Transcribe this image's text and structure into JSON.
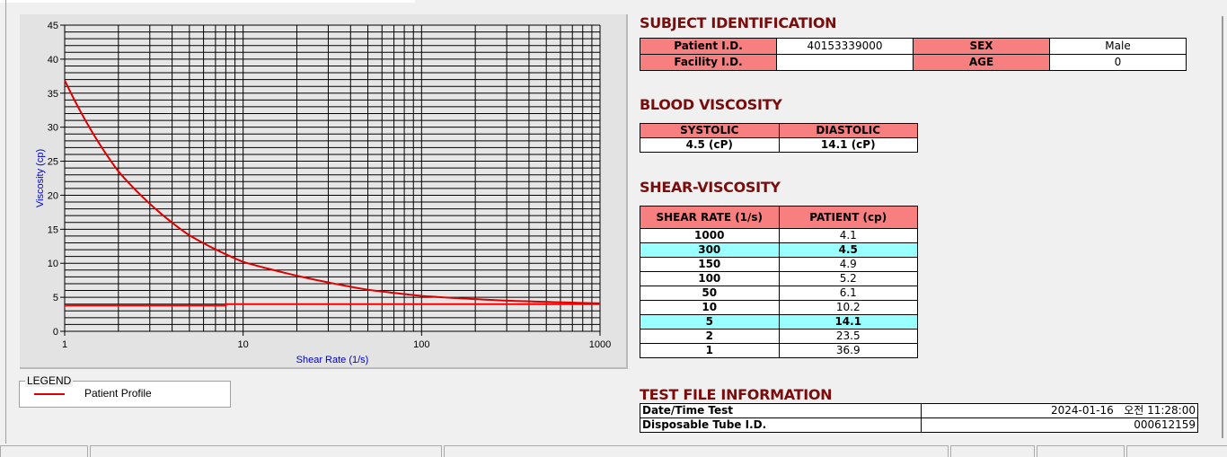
{
  "chart_data": {
    "type": "line",
    "xlabel": "Shear Rate (1/s)",
    "ylabel": "Viscosity (cp)",
    "xscale": "log",
    "xlim": [
      1,
      1000
    ],
    "ylim": [
      0,
      45
    ],
    "x_ticks": [
      "1",
      "10",
      "100",
      "1000"
    ],
    "y_ticks": [
      "0",
      "5",
      "10",
      "15",
      "20",
      "25",
      "30",
      "35",
      "40",
      "45"
    ],
    "grid": true,
    "series": [
      {
        "name": "Patient Profile",
        "color": "#dd0000",
        "x": [
          1,
          2,
          5,
          10,
          50,
          100,
          150,
          300,
          1000
        ],
        "y": [
          36.9,
          23.5,
          14.1,
          10.2,
          6.1,
          5.2,
          4.9,
          4.5,
          4.1
        ]
      },
      {
        "color": "#ff0000",
        "x": [
          1,
          8,
          8,
          1000
        ],
        "y": [
          3.8,
          3.8,
          4.0,
          4.0
        ]
      }
    ],
    "legend_title": "LEGEND",
    "legend_placement": "bottom-left"
  },
  "subject": {
    "title": "SUBJECT IDENTIFICATION",
    "patient_id_label": "Patient I.D.",
    "patient_id": "40153339000",
    "sex_label": "SEX",
    "sex": "Male",
    "facility_label": "Facility I.D.",
    "facility": "",
    "age_label": "AGE",
    "age": "0"
  },
  "blood": {
    "title": "BLOOD VISCOSITY",
    "systolic_label": "SYSTOLIC",
    "diastolic_label": "DIASTOLIC",
    "systolic": "4.5 (cP)",
    "diastolic": "14.1 (cP)"
  },
  "shear": {
    "title": "SHEAR-VISCOSITY",
    "col1": "SHEAR RATE (1/s)",
    "col2": "PATIENT (cp)",
    "rows": [
      [
        "1000",
        "4.1",
        false
      ],
      [
        "300",
        "4.5",
        true
      ],
      [
        "150",
        "4.9",
        false
      ],
      [
        "100",
        "5.2",
        false
      ],
      [
        "50",
        "6.1",
        false
      ],
      [
        "10",
        "10.2",
        false
      ],
      [
        "5",
        "14.1",
        true
      ],
      [
        "2",
        "23.5",
        false
      ],
      [
        "1",
        "36.9",
        false
      ]
    ]
  },
  "testfile": {
    "title": "TEST FILE INFORMATION",
    "date_label": "Date/Time Test",
    "date": "2024-01-16   오전 11:28:00",
    "tube_label": "Disposable Tube I.D.",
    "tube": "000612159"
  },
  "colors": {
    "header": "#f77f7f",
    "highlight": "#99ffff",
    "title": "#7a0c0c"
  }
}
